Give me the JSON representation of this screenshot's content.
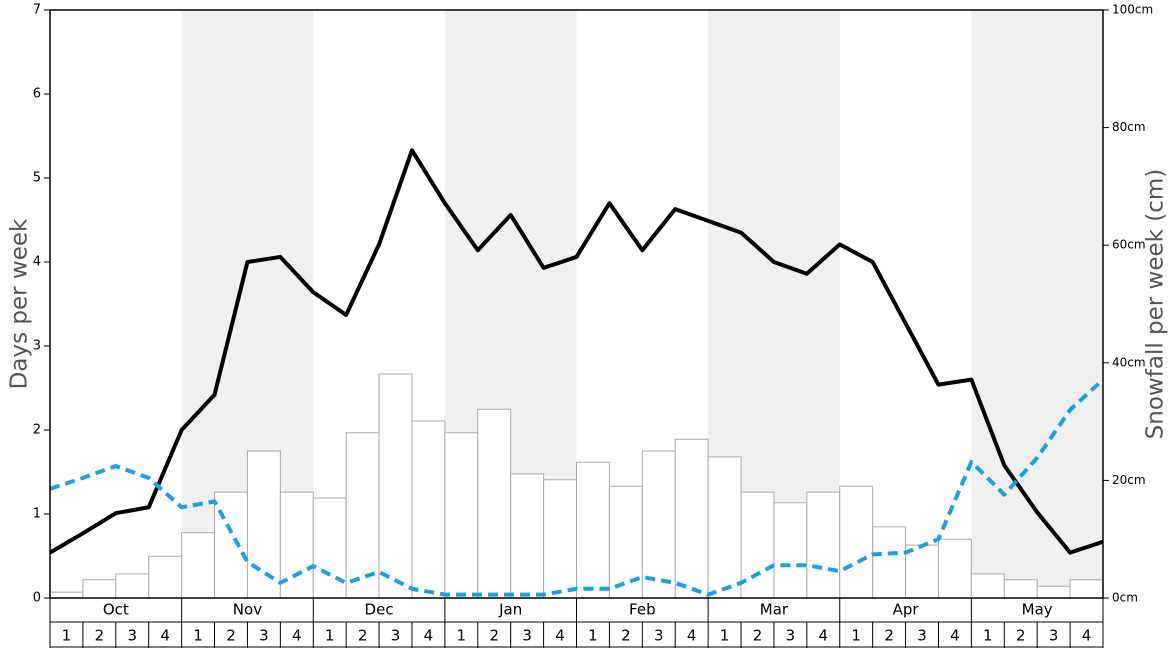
{
  "chart_data": {
    "type": "bar",
    "y_label": "Days per week",
    "y2_label": "Snowfall per week (cm)",
    "months": [
      "Oct",
      "Nov",
      "Dec",
      "Jan",
      "Feb",
      "Mar",
      "Apr",
      "May"
    ],
    "weeks": [
      "1",
      "2",
      "3",
      "4"
    ],
    "ylim": [
      0,
      7
    ],
    "yticks": [
      0,
      1,
      2,
      3,
      4,
      5,
      6,
      7
    ],
    "y2lim": [
      0,
      100
    ],
    "y2ticks": [
      {
        "value": 0,
        "label": "0cm"
      },
      {
        "value": 20,
        "label": "20cm"
      },
      {
        "value": 40,
        "label": "40cm"
      },
      {
        "value": 60,
        "label": "60cm"
      },
      {
        "value": 80,
        "label": "80cm"
      },
      {
        "value": 100,
        "label": "100cm"
      }
    ],
    "shade_color": "#f0f0f0",
    "series": [
      {
        "type": "bar",
        "axis": "y2",
        "color": "#ffffff",
        "values": [
          1.0,
          3.1,
          4.1,
          7.1,
          11.1,
          18.0,
          25.0,
          18.0,
          17.0,
          28.1,
          38.1,
          30.1,
          28.1,
          32.1,
          21.1,
          20.1,
          23.1,
          19.0,
          25.0,
          27.0,
          24.0,
          18.0,
          16.2,
          18.0,
          19.0,
          12.1,
          9.0,
          10.0,
          4.1,
          3.1,
          2.0,
          3.1
        ]
      },
      {
        "type": "line",
        "color": "#000000",
        "dashed": false,
        "values": [
          0.54,
          0.77,
          1.01,
          1.08,
          2.0,
          2.42,
          4.0,
          4.06,
          3.64,
          3.37,
          4.21,
          5.33,
          4.7,
          4.14,
          4.56,
          3.93,
          4.06,
          4.7,
          4.14,
          4.63,
          4.49,
          4.35,
          4.0,
          3.86,
          4.21,
          4.0,
          3.27,
          2.54,
          2.6,
          1.58,
          1.02,
          0.54,
          0.67
        ]
      },
      {
        "type": "line",
        "color": "#1ba1e2",
        "dashed": true,
        "values": [
          1.3,
          1.43,
          1.57,
          1.43,
          1.08,
          1.15,
          0.43,
          0.18,
          0.38,
          0.18,
          0.31,
          0.11,
          0.04,
          0.04,
          0.04,
          0.04,
          0.11,
          0.11,
          0.25,
          0.18,
          0.04,
          0.18,
          0.39,
          0.39,
          0.32,
          0.52,
          0.54,
          0.7,
          1.62,
          1.23,
          1.67,
          2.24,
          2.6
        ]
      }
    ]
  }
}
